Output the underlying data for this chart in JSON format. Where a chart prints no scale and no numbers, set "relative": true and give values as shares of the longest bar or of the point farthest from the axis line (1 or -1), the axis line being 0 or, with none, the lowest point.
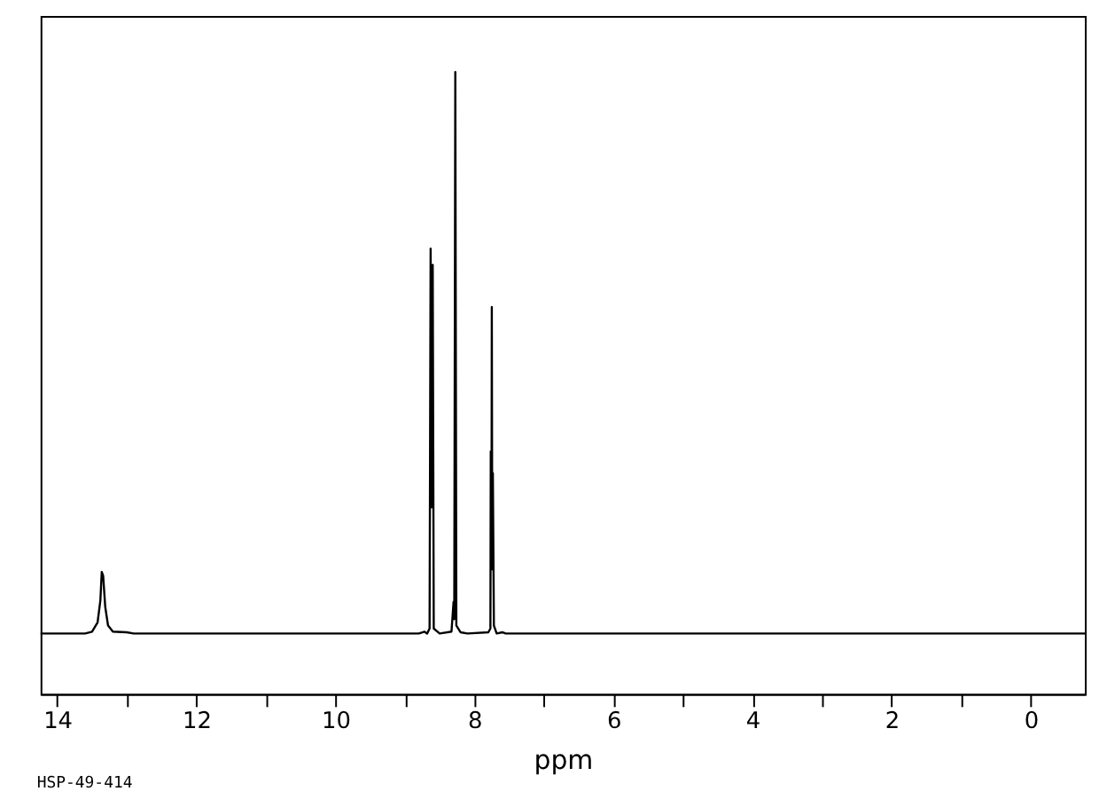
{
  "chart_data": {
    "type": "line",
    "xlabel": "ppm",
    "annotations": [
      "HSP-49-414"
    ],
    "relative": true,
    "tick_labels": "x",
    "grid": false,
    "marker": "none",
    "line_style": "solid",
    "xlim": [
      14.24,
      -0.78
    ],
    "xticks": [
      14,
      {
        "value": 13,
        "label": null
      },
      12,
      {
        "value": 11,
        "label": null
      },
      10,
      {
        "value": 9,
        "label": null
      },
      8,
      {
        "value": 7,
        "label": null
      },
      6,
      {
        "value": 5,
        "label": null
      },
      4,
      {
        "value": 3,
        "label": null
      },
      2,
      {
        "value": 1,
        "label": null
      },
      0
    ],
    "series": [
      {
        "color": "#000000",
        "x": [
          14.24,
          13.6,
          13.5,
          13.42,
          13.38,
          13.36,
          13.34,
          13.31,
          13.27,
          13.2,
          13.0,
          12.9,
          8.8,
          8.72,
          8.68,
          8.645,
          8.63,
          8.615,
          8.6,
          8.585,
          8.5,
          8.33,
          8.3,
          8.29,
          8.275,
          8.26,
          8.2,
          8.1,
          7.8,
          7.77,
          7.765,
          7.755,
          7.75,
          7.745,
          7.735,
          7.72,
          7.68,
          7.6,
          7.55,
          -0.78
        ],
        "values": [
          0.097,
          0.097,
          0.1,
          0.115,
          0.15,
          0.196,
          0.19,
          0.14,
          0.11,
          0.1,
          0.099,
          0.097,
          0.097,
          0.1,
          0.097,
          0.105,
          0.716,
          0.3,
          0.69,
          0.105,
          0.097,
          0.1,
          0.148,
          0.12,
          1.0,
          0.11,
          0.099,
          0.097,
          0.099,
          0.105,
          0.39,
          0.2,
          0.622,
          0.3,
          0.355,
          0.11,
          0.097,
          0.099,
          0.097,
          0.097
        ]
      }
    ]
  }
}
